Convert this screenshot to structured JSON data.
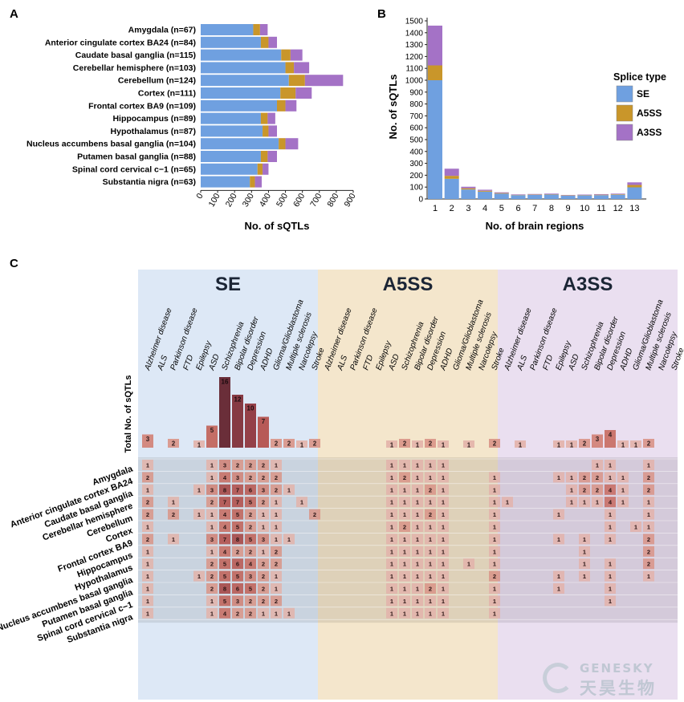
{
  "panels": {
    "a": "A",
    "b": "B",
    "c": "C"
  },
  "colors": {
    "SE": "#6fa0e0",
    "A5SS": "#c9962a",
    "A3SS": "#a472c6",
    "bg_SE": "#dde8f6",
    "bg_A5SS": "#f4e6cc",
    "bg_A3SS": "#eadff0"
  },
  "watermark": {
    "en": "GENESKY",
    "cn": "天昊生物"
  },
  "chart_data": [
    {
      "id": "A",
      "type": "bar",
      "orientation": "horizontal",
      "stacked": true,
      "xlabel": "No. of sQTLs",
      "xlim": [
        0,
        900
      ],
      "xticks": [
        "0",
        "100",
        "200",
        "300",
        "400",
        "500",
        "600",
        "700",
        "800",
        "900"
      ],
      "categories": [
        "Amygdala (n=67)",
        "Anterior cingulate cortex BA24 (n=84)",
        "Caudate basal ganglia (n=115)",
        "Cerebellar hemisphere (n=103)",
        "Cerebellum (n=124)",
        "Cortex (n=111)",
        "Frontal cortex BA9 (n=109)",
        "Hippocampus (n=89)",
        "Hypothalamus (n=87)",
        "Nucleus accumbens basal ganglia (n=104)",
        "Putamen basal ganglia (n=88)",
        "Spinal cord cervical c−1 (n=65)",
        "Substantia nigra (n=63)"
      ],
      "series": [
        {
          "name": "SE",
          "values": [
            310,
            355,
            475,
            500,
            520,
            470,
            450,
            355,
            365,
            460,
            355,
            335,
            290
          ]
        },
        {
          "name": "A5SS",
          "values": [
            40,
            45,
            55,
            50,
            95,
            90,
            50,
            40,
            35,
            40,
            40,
            30,
            30
          ]
        },
        {
          "name": "A3SS",
          "values": [
            45,
            50,
            70,
            90,
            225,
            95,
            65,
            45,
            50,
            75,
            55,
            35,
            40
          ]
        }
      ]
    },
    {
      "id": "B",
      "type": "bar",
      "stacked": true,
      "xlabel": "No. of brain regions",
      "ylabel": "No. of sQTLs",
      "ylim": [
        0,
        1500
      ],
      "yticks": [
        "0",
        "100",
        "200",
        "300",
        "400",
        "500",
        "600",
        "700",
        "800",
        "900",
        "1000",
        "1100",
        "1200",
        "1300",
        "1400",
        "1500"
      ],
      "categories": [
        "1",
        "2",
        "3",
        "4",
        "5",
        "6",
        "7",
        "8",
        "9",
        "10",
        "11",
        "12",
        "13"
      ],
      "legend": {
        "title": "Splice type",
        "entries": [
          "SE",
          "A5SS",
          "A3SS"
        ],
        "position": "right"
      },
      "series": [
        {
          "name": "SE",
          "values": [
            1000,
            170,
            80,
            62,
            45,
            32,
            35,
            37,
            28,
            30,
            32,
            36,
            98
          ]
        },
        {
          "name": "A5SS",
          "values": [
            125,
            25,
            10,
            7,
            5,
            3,
            3,
            3,
            3,
            3,
            4,
            4,
            20
          ]
        },
        {
          "name": "A3SS",
          "values": [
            335,
            60,
            13,
            9,
            6,
            4,
            4,
            5,
            3,
            4,
            5,
            5,
            22
          ]
        }
      ]
    },
    {
      "id": "C",
      "type": "heatmap",
      "groups": [
        "SE",
        "A5SS",
        "A3SS"
      ],
      "columns": [
        "Alzheimer disease",
        "ALS",
        "Parkinson disease",
        "FTD",
        "Epilepsy",
        "ASD",
        "Schizophrenia",
        "Bipolar disorder",
        "Depression",
        "ADHD",
        "Glioma/Glioblastoma",
        "Multiple sclerosis",
        "Narcolepsy",
        "Stroke"
      ],
      "rows": [
        "Amygdala",
        "Anterior cingulate cortex BA24",
        "Caudate basal ganglia",
        "Cerebellar hemisphere",
        "Cerebellum",
        "Cortex",
        "Frontal cortex BA9",
        "Hippocampus",
        "Hypothalamus",
        "Nucleus accumbens basal ganglia",
        "Putamen basal ganglia",
        "Spinal cord cervical c−1",
        "Substantia nigra"
      ],
      "totals_label": "Total No. of sQTLs",
      "totals": {
        "SE": [
          3,
          0,
          2,
          0,
          1,
          5,
          16,
          12,
          10,
          7,
          2,
          2,
          1,
          2
        ],
        "A5SS": [
          0,
          0,
          0,
          0,
          0,
          1,
          2,
          1,
          2,
          1,
          0,
          1,
          0,
          2
        ],
        "A3SS": [
          0,
          1,
          0,
          0,
          1,
          1,
          2,
          3,
          4,
          1,
          1,
          2,
          0,
          0
        ]
      },
      "values": {
        "SE": [
          [
            1,
            0,
            0,
            0,
            0,
            1,
            3,
            2,
            2,
            2,
            1,
            0,
            0,
            0
          ],
          [
            2,
            0,
            0,
            0,
            0,
            1,
            4,
            3,
            2,
            2,
            2,
            0,
            0,
            0
          ],
          [
            1,
            0,
            0,
            0,
            1,
            3,
            8,
            7,
            6,
            3,
            2,
            1,
            0,
            0
          ],
          [
            2,
            0,
            1,
            0,
            0,
            2,
            7,
            7,
            5,
            2,
            1,
            0,
            1,
            0
          ],
          [
            2,
            0,
            2,
            0,
            1,
            1,
            4,
            5,
            2,
            1,
            1,
            0,
            0,
            2
          ],
          [
            1,
            0,
            0,
            0,
            0,
            1,
            4,
            5,
            2,
            1,
            1,
            0,
            0,
            0
          ],
          [
            2,
            0,
            1,
            0,
            0,
            3,
            7,
            8,
            5,
            3,
            1,
            1,
            0,
            0
          ],
          [
            1,
            0,
            0,
            0,
            0,
            1,
            4,
            2,
            2,
            1,
            2,
            0,
            0,
            0
          ],
          [
            1,
            0,
            0,
            0,
            0,
            2,
            5,
            6,
            4,
            2,
            2,
            0,
            0,
            0
          ],
          [
            1,
            0,
            0,
            0,
            1,
            2,
            5,
            5,
            3,
            2,
            1,
            0,
            0,
            0
          ],
          [
            1,
            0,
            0,
            0,
            0,
            2,
            8,
            6,
            5,
            2,
            1,
            0,
            0,
            0
          ],
          [
            1,
            0,
            0,
            0,
            0,
            1,
            5,
            3,
            2,
            2,
            2,
            0,
            0,
            0
          ],
          [
            1,
            0,
            0,
            0,
            0,
            1,
            4,
            2,
            2,
            1,
            1,
            1,
            0,
            0
          ]
        ],
        "A5SS": [
          [
            0,
            0,
            0,
            0,
            0,
            1,
            1,
            1,
            1,
            1,
            0,
            0,
            0,
            0
          ],
          [
            0,
            0,
            0,
            0,
            0,
            1,
            2,
            1,
            1,
            1,
            0,
            0,
            0,
            1
          ],
          [
            0,
            0,
            0,
            0,
            0,
            1,
            1,
            1,
            2,
            1,
            0,
            0,
            0,
            1
          ],
          [
            0,
            0,
            0,
            0,
            0,
            1,
            1,
            1,
            1,
            1,
            0,
            0,
            0,
            1
          ],
          [
            0,
            0,
            0,
            0,
            0,
            1,
            1,
            1,
            2,
            1,
            0,
            0,
            0,
            1
          ],
          [
            0,
            0,
            0,
            0,
            0,
            1,
            2,
            1,
            1,
            1,
            0,
            0,
            0,
            1
          ],
          [
            0,
            0,
            0,
            0,
            0,
            1,
            1,
            1,
            1,
            1,
            0,
            0,
            0,
            1
          ],
          [
            0,
            0,
            0,
            0,
            0,
            1,
            1,
            1,
            1,
            1,
            0,
            0,
            0,
            1
          ],
          [
            0,
            0,
            0,
            0,
            0,
            1,
            1,
            1,
            1,
            1,
            0,
            1,
            0,
            1
          ],
          [
            0,
            0,
            0,
            0,
            0,
            1,
            1,
            1,
            1,
            1,
            0,
            0,
            0,
            2
          ],
          [
            0,
            0,
            0,
            0,
            0,
            1,
            1,
            1,
            2,
            1,
            0,
            0,
            0,
            1
          ],
          [
            0,
            0,
            0,
            0,
            0,
            1,
            1,
            1,
            1,
            1,
            0,
            0,
            0,
            1
          ],
          [
            0,
            0,
            0,
            0,
            0,
            1,
            1,
            1,
            1,
            1,
            0,
            0,
            0,
            1
          ]
        ],
        "A3SS": [
          [
            0,
            0,
            0,
            0,
            0,
            0,
            0,
            1,
            1,
            0,
            0,
            1,
            0,
            0
          ],
          [
            0,
            0,
            0,
            0,
            1,
            1,
            2,
            2,
            1,
            1,
            0,
            2,
            0,
            0
          ],
          [
            0,
            0,
            0,
            0,
            0,
            1,
            2,
            2,
            4,
            1,
            0,
            2,
            0,
            0
          ],
          [
            1,
            0,
            0,
            0,
            0,
            1,
            1,
            1,
            4,
            1,
            0,
            1,
            0,
            0
          ],
          [
            0,
            0,
            0,
            0,
            1,
            0,
            0,
            0,
            1,
            0,
            0,
            1,
            0,
            0
          ],
          [
            0,
            0,
            0,
            0,
            0,
            0,
            0,
            0,
            1,
            0,
            1,
            1,
            0,
            0
          ],
          [
            0,
            0,
            0,
            0,
            1,
            0,
            1,
            0,
            1,
            0,
            0,
            2,
            0,
            0
          ],
          [
            0,
            0,
            0,
            0,
            0,
            0,
            1,
            0,
            0,
            0,
            0,
            2,
            0,
            0
          ],
          [
            0,
            0,
            0,
            0,
            0,
            0,
            1,
            0,
            1,
            0,
            0,
            2,
            0,
            0
          ],
          [
            0,
            0,
            0,
            0,
            1,
            0,
            1,
            0,
            1,
            0,
            0,
            1,
            0,
            0
          ],
          [
            0,
            0,
            0,
            0,
            1,
            0,
            0,
            0,
            1,
            0,
            0,
            0,
            0,
            0
          ],
          [
            0,
            0,
            0,
            0,
            0,
            0,
            0,
            0,
            1,
            0,
            0,
            0,
            0,
            0
          ],
          [
            0,
            0,
            0,
            0,
            0,
            0,
            0,
            0,
            0,
            0,
            0,
            0,
            0,
            0
          ]
        ]
      }
    }
  ]
}
